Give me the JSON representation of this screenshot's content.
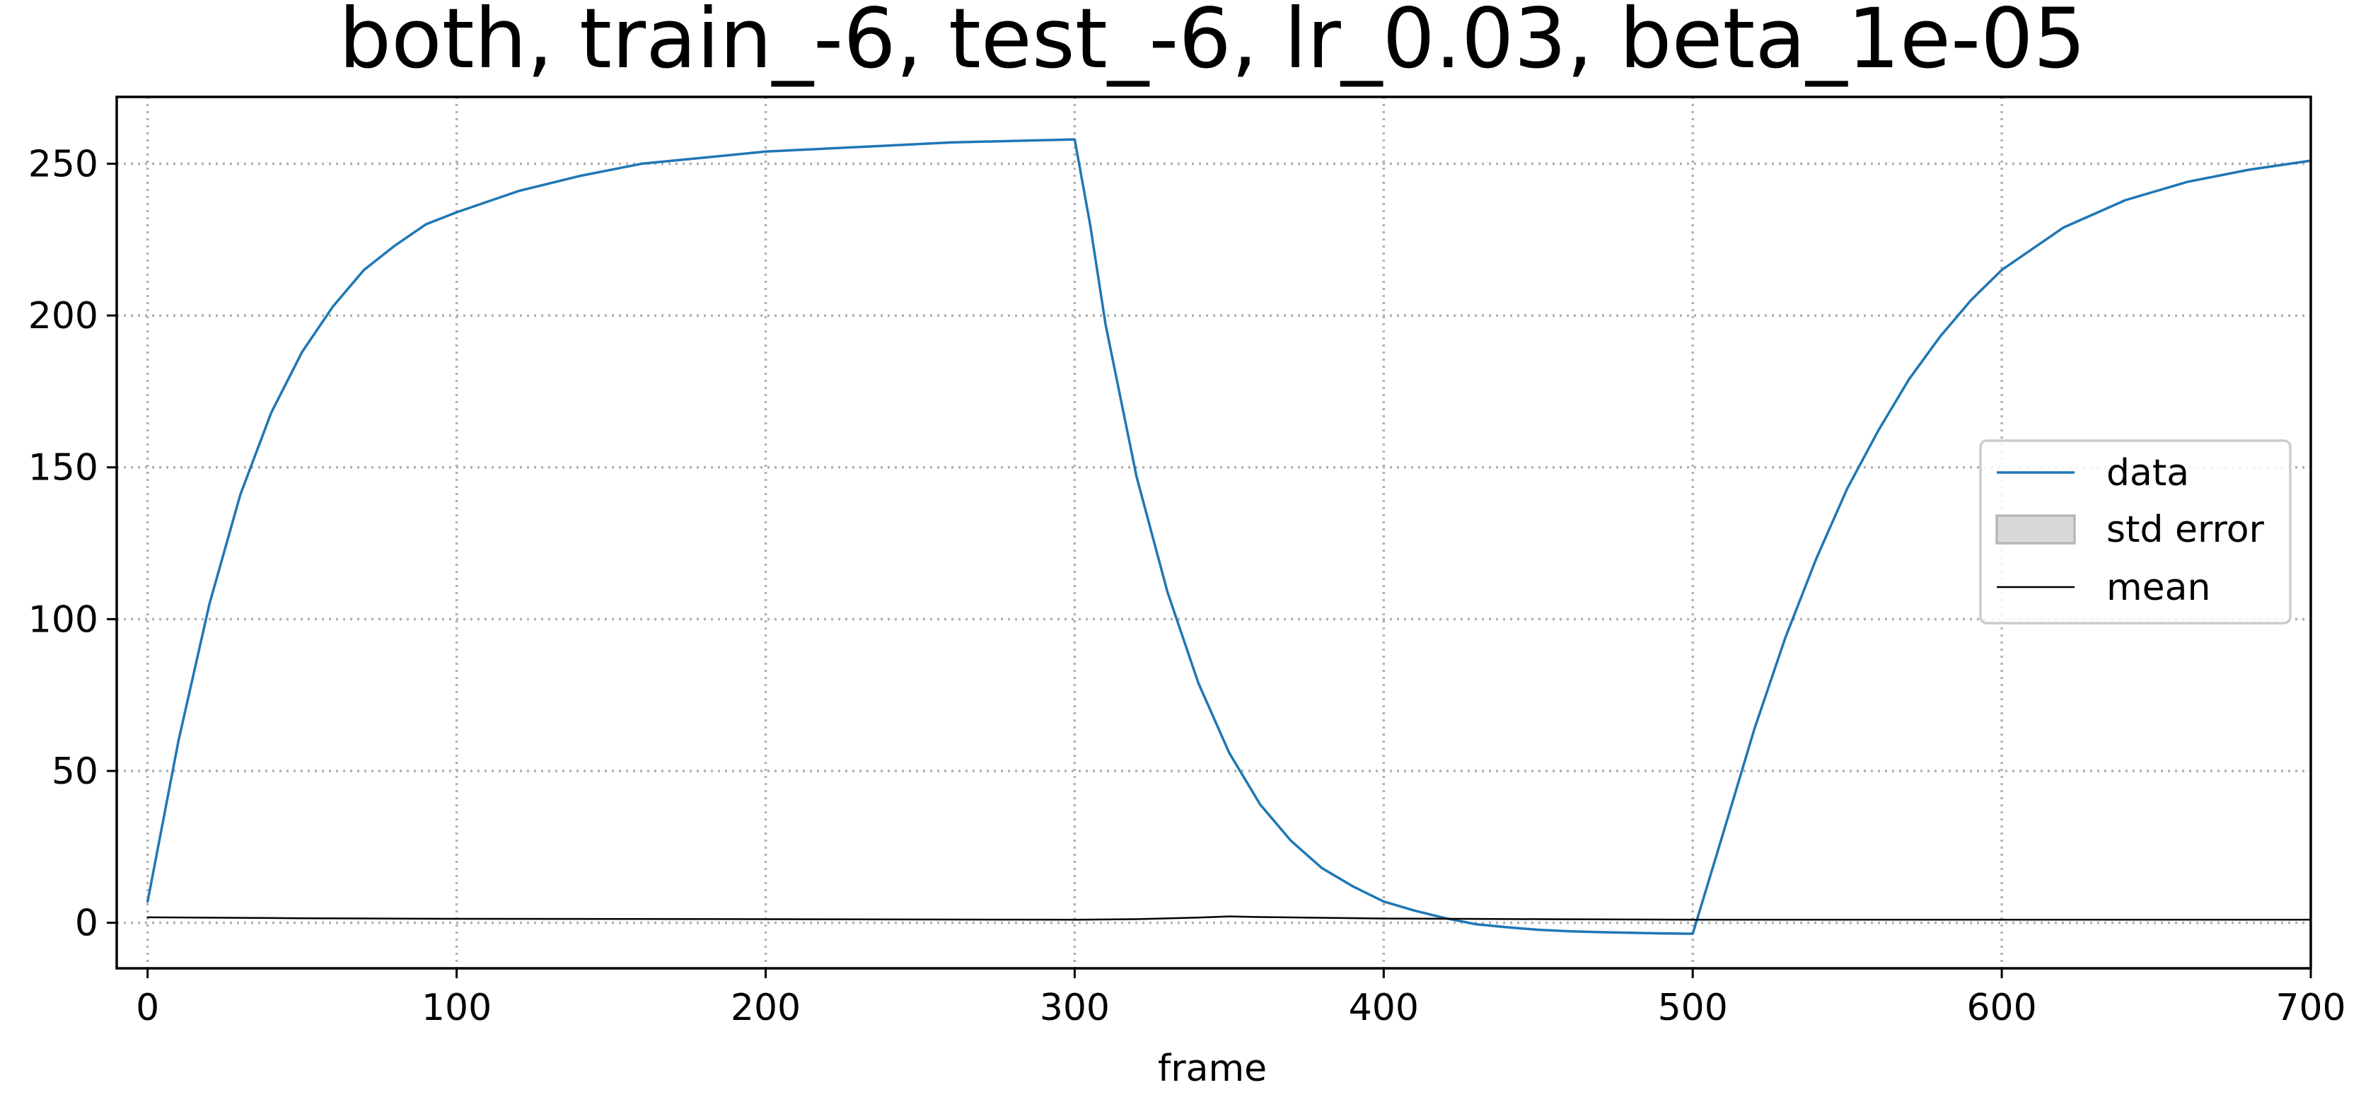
{
  "chart_data": {
    "type": "line",
    "title": "both, train_-6, test_-6, lr_0.03, beta_1e-05",
    "xlabel": "frame",
    "ylabel": "",
    "xlim": [
      -10,
      700
    ],
    "ylim": [
      -15,
      272
    ],
    "xticks": [
      0,
      100,
      200,
      300,
      400,
      500,
      600,
      700
    ],
    "yticks": [
      0,
      50,
      100,
      150,
      200,
      250
    ],
    "grid": true,
    "legend_position": "center-right",
    "colors": {
      "data": "#1f77b4",
      "std_error_fill": "#d8d8d8",
      "std_error_edge": "#b8b8b8",
      "mean": "#000000"
    },
    "legend": [
      {
        "label": "data",
        "kind": "line",
        "color": "#1f77b4"
      },
      {
        "label": "std error",
        "kind": "patch",
        "color": "#d8d8d8"
      },
      {
        "label": "mean",
        "kind": "line",
        "color": "#000000"
      }
    ],
    "series": [
      {
        "name": "data",
        "x": [
          0,
          10,
          20,
          30,
          40,
          50,
          60,
          70,
          80,
          90,
          100,
          120,
          140,
          160,
          180,
          200,
          220,
          240,
          260,
          280,
          300,
          305,
          310,
          320,
          330,
          340,
          350,
          360,
          370,
          380,
          390,
          400,
          410,
          420,
          430,
          440,
          450,
          460,
          470,
          480,
          490,
          500,
          510,
          520,
          530,
          540,
          550,
          560,
          570,
          580,
          590,
          600,
          620,
          640,
          660,
          680,
          700
        ],
        "y": [
          7,
          60,
          105,
          141,
          168,
          188,
          203,
          215,
          223,
          230,
          234,
          241,
          246,
          250,
          252,
          254,
          255,
          256,
          257,
          257.5,
          258,
          230,
          197,
          147,
          109,
          79,
          56,
          39,
          27,
          18,
          12,
          7,
          4,
          1.5,
          -0.5,
          -1.5,
          -2.3,
          -2.8,
          -3.1,
          -3.3,
          -3.5,
          -3.6,
          30,
          64,
          94,
          120,
          143,
          162,
          179,
          193,
          205,
          215,
          229,
          238,
          244,
          248,
          251
        ]
      },
      {
        "name": "mean",
        "x": [
          0,
          50,
          100,
          200,
          300,
          320,
          340,
          350,
          360,
          400,
          450,
          500,
          600,
          700
        ],
        "y": [
          1.8,
          1.5,
          1.3,
          1.2,
          1.0,
          1.2,
          1.7,
          2.1,
          1.9,
          1.4,
          1.2,
          1.0,
          1.0,
          1.0
        ]
      }
    ]
  }
}
